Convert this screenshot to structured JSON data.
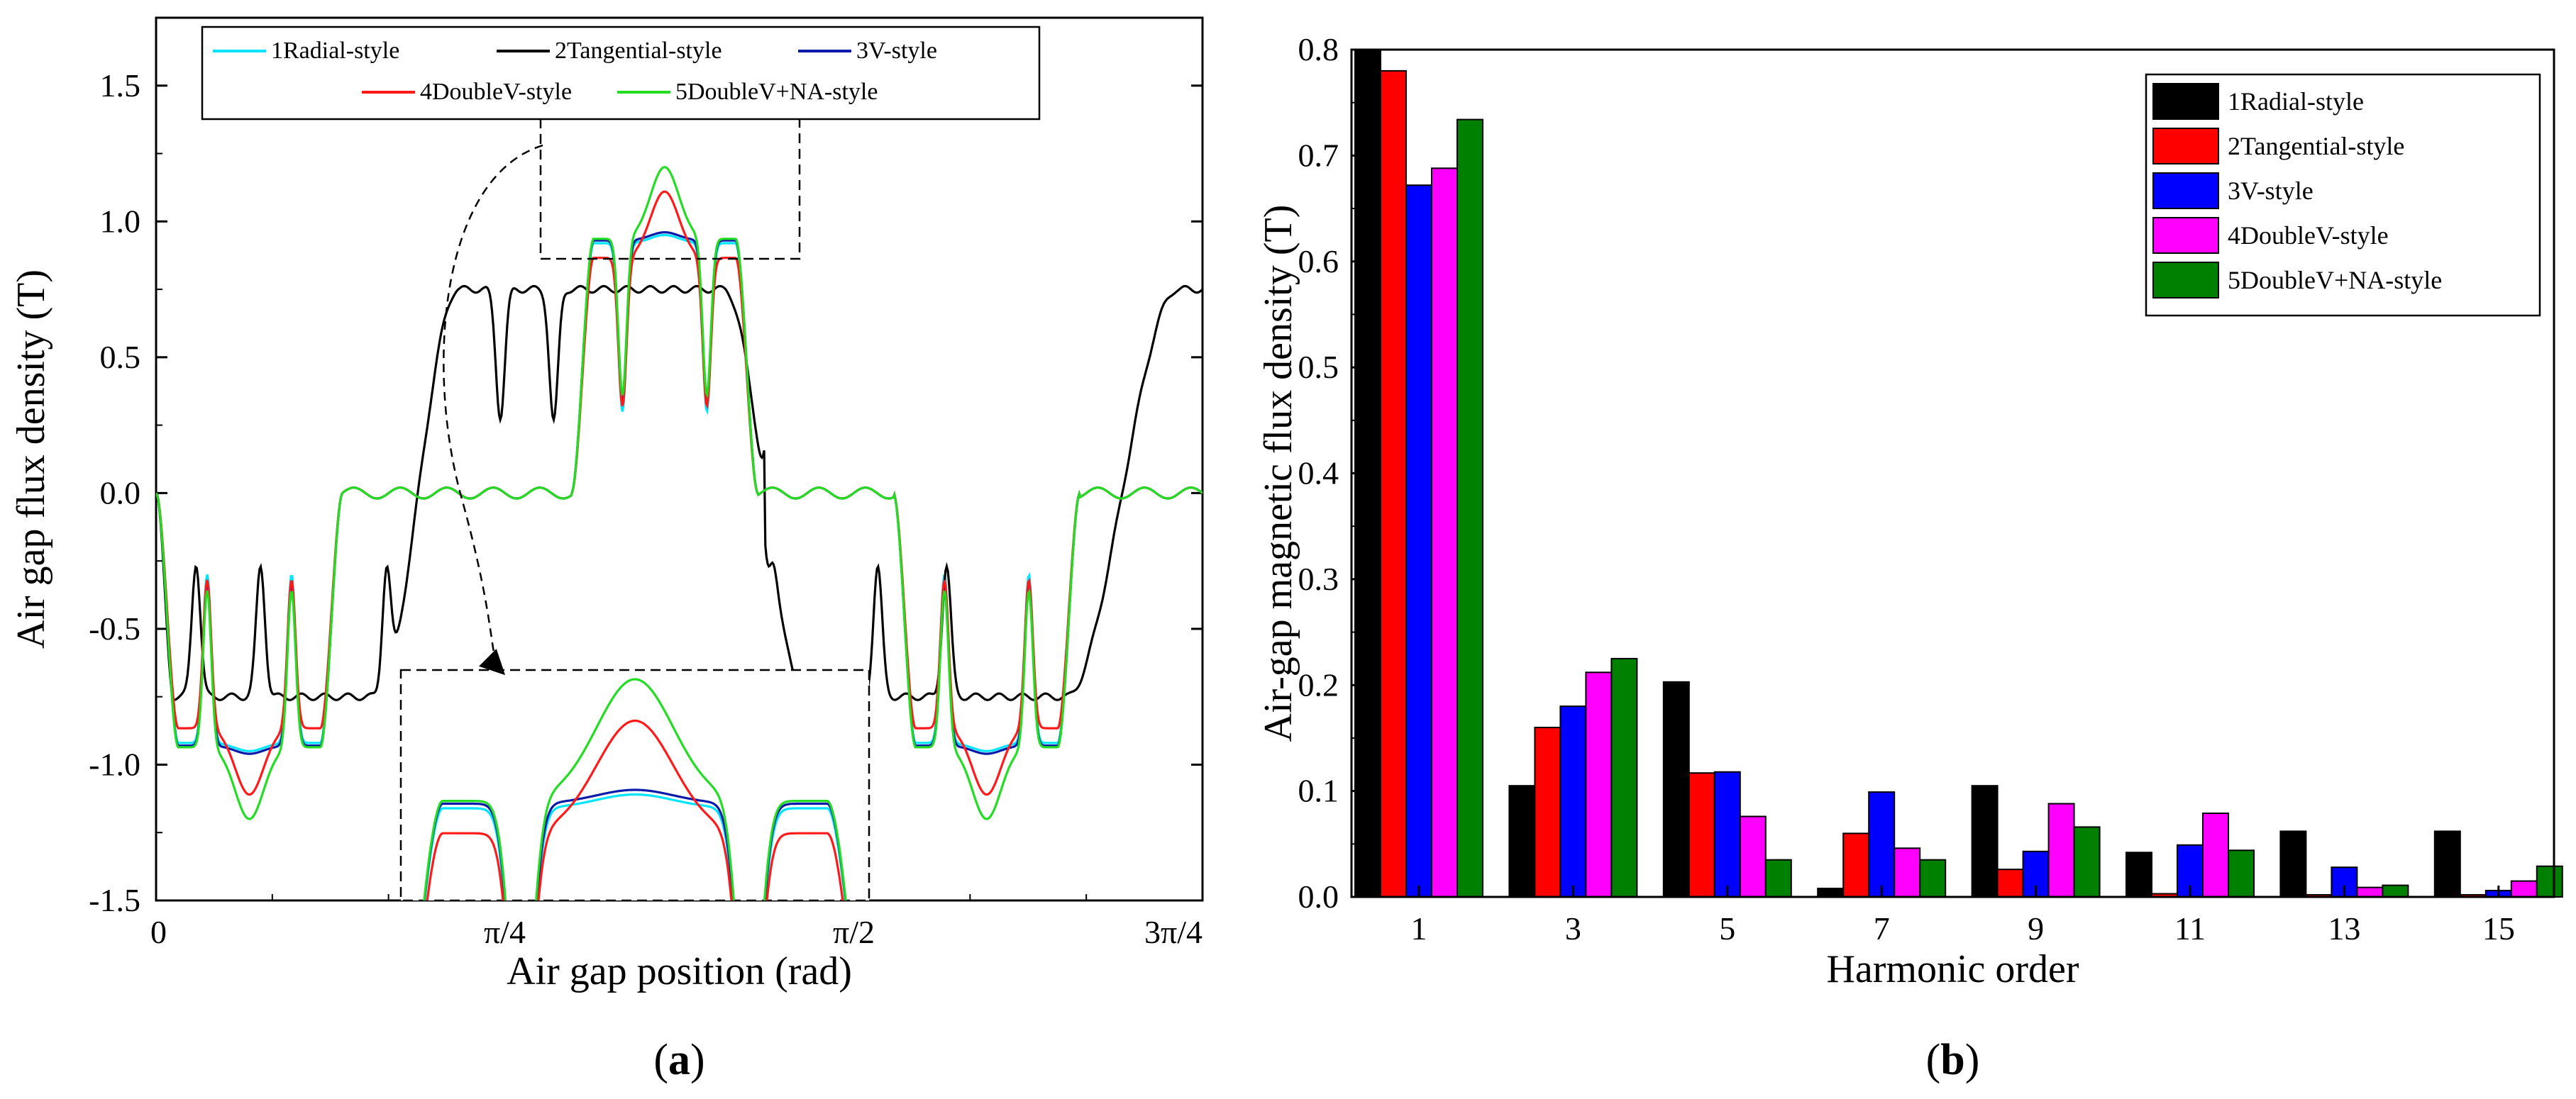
{
  "colors": {
    "radial": "#00e5ff",
    "tangential": "#000000",
    "v_style": "#0a1aa8",
    "doublev": "#ff1a1a",
    "doublev_na": "#22dd22",
    "bar_radial": "#000000",
    "bar_tangential": "#ff0000",
    "bar_v": "#0000ff",
    "bar_doublev": "#ff00ff",
    "bar_doublev_na": "#008000"
  },
  "panel_a": {
    "caption_bold": "a",
    "legend": [
      "1Radial-style",
      "2Tangential-style",
      "3V-style",
      "4DoubleV-style",
      "5DoubleV+NA-style"
    ]
  },
  "panel_b": {
    "caption_bold": "b"
  },
  "chart_data": [
    {
      "type": "line",
      "xlabel": "Air gap position (rad)",
      "ylabel": "Air gap flux density (T)",
      "xlim": [
        0,
        2.356
      ],
      "ylim": [
        -1.5,
        1.75
      ],
      "x_ticks": [
        0,
        0.785,
        1.571,
        2.356
      ],
      "x_tick_labels": [
        "0",
        "π/4",
        "π/2",
        "3π/4"
      ],
      "y_ticks": [
        -1.5,
        -1.0,
        -0.5,
        0.0,
        0.5,
        1.0,
        1.5
      ],
      "y_tick_labels": [
        "-1.5",
        "-1.0",
        "-0.5",
        "0.0",
        "0.5",
        "1.0",
        "1.5"
      ],
      "legend_position": "top",
      "inset": "zoomed view of the pole peak region",
      "series": [
        {
          "name": "1Radial-style",
          "color_key": "radial",
          "peak": 0.95,
          "slot_dip": 0.3,
          "flat": 0.92
        },
        {
          "name": "2Tangential-style",
          "color_key": "tangential",
          "peak": 0.75,
          "slot_dip": 0.27
        },
        {
          "name": "3V-style",
          "color_key": "v_style",
          "peak": 0.96,
          "slot_dip": 0.33,
          "flat": 0.93
        },
        {
          "name": "4DoubleV-style",
          "color_key": "doublev",
          "peak": 1.11,
          "slot_dip": 0.32
        },
        {
          "name": "5DoubleV+NA-style",
          "color_key": "doublev_na",
          "peak": 1.2,
          "slot_dip": 0.36
        }
      ]
    },
    {
      "type": "bar",
      "xlabel": "Harmonic order",
      "ylabel": "Air-gap magnetic flux density (T)",
      "ylim": [
        0,
        0.8
      ],
      "y_ticks": [
        0.0,
        0.1,
        0.2,
        0.3,
        0.4,
        0.5,
        0.6,
        0.7,
        0.8
      ],
      "y_tick_labels": [
        "0.0",
        "0.1",
        "0.2",
        "0.3",
        "0.4",
        "0.5",
        "0.6",
        "0.7",
        "0.8"
      ],
      "categories": [
        "1",
        "3",
        "5",
        "7",
        "9",
        "11",
        "13",
        "15"
      ],
      "legend_position": "top-right",
      "series": [
        {
          "name": "1Radial-style",
          "color_key": "bar_radial",
          "values": [
            0.81,
            0.105,
            0.203,
            0.008,
            0.105,
            0.042,
            0.062,
            0.062
          ]
        },
        {
          "name": "2Tangential-style",
          "color_key": "bar_tangential",
          "values": [
            0.78,
            0.16,
            0.117,
            0.06,
            0.026,
            0.003,
            0.002,
            0.002
          ]
        },
        {
          "name": "3V-style",
          "color_key": "bar_v",
          "values": [
            0.672,
            0.18,
            0.118,
            0.099,
            0.043,
            0.049,
            0.028,
            0.006
          ]
        },
        {
          "name": "4DoubleV-style",
          "color_key": "bar_doublev",
          "values": [
            0.688,
            0.212,
            0.076,
            0.046,
            0.088,
            0.079,
            0.009,
            0.015
          ]
        },
        {
          "name": "5DoubleV+NA-style",
          "color_key": "bar_doublev_na",
          "values": [
            0.734,
            0.225,
            0.035,
            0.035,
            0.066,
            0.044,
            0.011,
            0.029
          ]
        }
      ]
    }
  ]
}
